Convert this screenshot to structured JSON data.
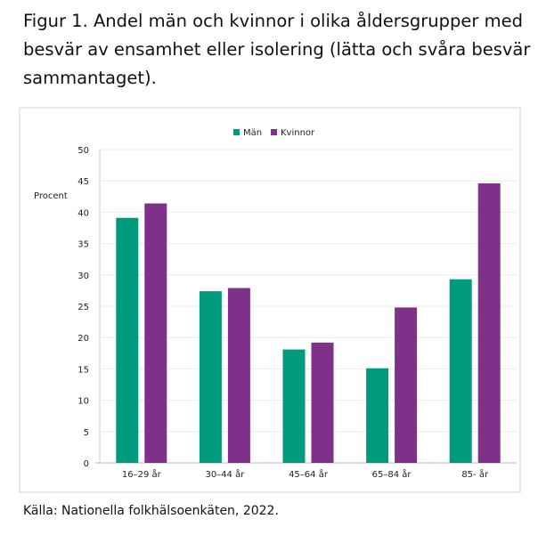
{
  "title": "Figur  1. Andel män och kvinnor i olika åldersgrupper med besvär av ensamhet eller isolering (lätta och svåra besvär sammantaget).",
  "source": "Källa: Nationella folkhälsoenkäten, 2022.",
  "chart_data": {
    "type": "bar",
    "title": "",
    "xlabel": "",
    "ylabel": "Procent",
    "ylim": [
      0,
      50
    ],
    "yticks": [
      0,
      5,
      10,
      15,
      20,
      25,
      30,
      35,
      40,
      45,
      50
    ],
    "grid": true,
    "legend": "top-center",
    "categories": [
      "16–29 år",
      "30–44 år",
      "45–64 år",
      "65–84 år",
      "85- år"
    ],
    "series": [
      {
        "name": "Män",
        "color": "#009b7d",
        "values": [
          39.1,
          27.4,
          18.1,
          15.1,
          29.3
        ]
      },
      {
        "name": "Kvinnor",
        "color": "#7f3189",
        "values": [
          41.4,
          27.9,
          19.2,
          24.8,
          44.6
        ]
      }
    ]
  }
}
